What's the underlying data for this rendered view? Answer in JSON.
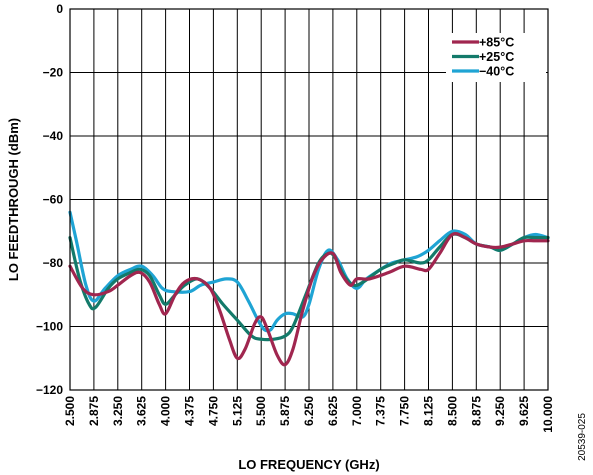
{
  "figure_id": "20539-025",
  "colors": {
    "series_85": "#a0264f",
    "series_25": "#137a6a",
    "series_m40": "#1fa4d4",
    "grid": "#000000"
  },
  "chart_data": {
    "type": "line",
    "title": "",
    "xlabel": "LO FREQUENCY (GHz)",
    "ylabel": "LO FEEDTHROUGH (dBm)",
    "xlim": [
      2.5,
      10.0
    ],
    "ylim": [
      -120,
      0
    ],
    "x_ticks": [
      "2.500",
      "2.875",
      "3.250",
      "3.625",
      "4.000",
      "4.375",
      "4.750",
      "5.125",
      "5.500",
      "5.875",
      "6.250",
      "6.625",
      "7.000",
      "7.375",
      "7.750",
      "8.125",
      "8.500",
      "8.875",
      "9.250",
      "9.625",
      "10.000"
    ],
    "y_ticks": [
      "0",
      "−20",
      "−40",
      "−60",
      "−80",
      "−100",
      "−120"
    ],
    "grid": true,
    "legend_position": "top-right",
    "series": [
      {
        "name": "+85°C",
        "color_key": "series_85",
        "points": [
          [
            2.5,
            -81
          ],
          [
            2.7,
            -88
          ],
          [
            2.875,
            -90
          ],
          [
            3.1,
            -89
          ],
          [
            3.25,
            -87
          ],
          [
            3.45,
            -84
          ],
          [
            3.6,
            -83
          ],
          [
            3.75,
            -86
          ],
          [
            3.9,
            -93
          ],
          [
            4.0,
            -96
          ],
          [
            4.15,
            -90
          ],
          [
            4.3,
            -86
          ],
          [
            4.5,
            -85
          ],
          [
            4.7,
            -88
          ],
          [
            4.85,
            -95
          ],
          [
            5.0,
            -104
          ],
          [
            5.125,
            -110
          ],
          [
            5.25,
            -107
          ],
          [
            5.4,
            -99
          ],
          [
            5.5,
            -97
          ],
          [
            5.6,
            -101
          ],
          [
            5.75,
            -109
          ],
          [
            5.875,
            -112
          ],
          [
            6.0,
            -107
          ],
          [
            6.15,
            -95
          ],
          [
            6.3,
            -85
          ],
          [
            6.45,
            -79
          ],
          [
            6.625,
            -77
          ],
          [
            6.75,
            -83
          ],
          [
            6.9,
            -87
          ],
          [
            7.0,
            -85
          ],
          [
            7.2,
            -85
          ],
          [
            7.5,
            -83
          ],
          [
            7.75,
            -81
          ],
          [
            8.0,
            -82
          ],
          [
            8.125,
            -82
          ],
          [
            8.3,
            -77
          ],
          [
            8.5,
            -71
          ],
          [
            8.7,
            -72
          ],
          [
            8.875,
            -74
          ],
          [
            9.1,
            -75
          ],
          [
            9.25,
            -75
          ],
          [
            9.45,
            -74
          ],
          [
            9.625,
            -73
          ],
          [
            9.8,
            -73
          ],
          [
            10.0,
            -73
          ]
        ]
      },
      {
        "name": "+25°C",
        "color_key": "series_25",
        "points": [
          [
            2.5,
            -72
          ],
          [
            2.65,
            -85
          ],
          [
            2.8,
            -93
          ],
          [
            2.9,
            -94
          ],
          [
            3.1,
            -88
          ],
          [
            3.25,
            -85
          ],
          [
            3.45,
            -83
          ],
          [
            3.6,
            -82
          ],
          [
            3.75,
            -84
          ],
          [
            3.9,
            -90
          ],
          [
            4.0,
            -93
          ],
          [
            4.15,
            -90
          ],
          [
            4.3,
            -87
          ],
          [
            4.5,
            -85
          ],
          [
            4.7,
            -88
          ],
          [
            4.9,
            -93
          ],
          [
            5.125,
            -98
          ],
          [
            5.35,
            -103
          ],
          [
            5.5,
            -104
          ],
          [
            5.7,
            -104
          ],
          [
            5.875,
            -103
          ],
          [
            6.0,
            -100
          ],
          [
            6.2,
            -90
          ],
          [
            6.4,
            -80
          ],
          [
            6.55,
            -77
          ],
          [
            6.65,
            -78
          ],
          [
            6.8,
            -84
          ],
          [
            6.95,
            -87
          ],
          [
            7.1,
            -86
          ],
          [
            7.375,
            -82
          ],
          [
            7.6,
            -80
          ],
          [
            7.75,
            -79
          ],
          [
            8.0,
            -80
          ],
          [
            8.125,
            -79
          ],
          [
            8.3,
            -75
          ],
          [
            8.5,
            -71
          ],
          [
            8.7,
            -72
          ],
          [
            8.875,
            -74
          ],
          [
            9.1,
            -75
          ],
          [
            9.25,
            -76
          ],
          [
            9.45,
            -74
          ],
          [
            9.625,
            -72
          ],
          [
            9.8,
            -72
          ],
          [
            10.0,
            -72
          ]
        ]
      },
      {
        "name": "−40°C",
        "color_key": "series_m40",
        "points": [
          [
            2.5,
            -64
          ],
          [
            2.6,
            -73
          ],
          [
            2.75,
            -87
          ],
          [
            2.875,
            -92
          ],
          [
            3.05,
            -88
          ],
          [
            3.25,
            -84
          ],
          [
            3.45,
            -82
          ],
          [
            3.625,
            -81
          ],
          [
            3.8,
            -84
          ],
          [
            3.95,
            -88
          ],
          [
            4.1,
            -89
          ],
          [
            4.375,
            -89
          ],
          [
            4.55,
            -87
          ],
          [
            4.75,
            -86
          ],
          [
            4.95,
            -85
          ],
          [
            5.125,
            -86
          ],
          [
            5.3,
            -92
          ],
          [
            5.45,
            -98
          ],
          [
            5.55,
            -101
          ],
          [
            5.65,
            -101
          ],
          [
            5.75,
            -98
          ],
          [
            5.875,
            -96
          ],
          [
            6.0,
            -96
          ],
          [
            6.15,
            -97
          ],
          [
            6.25,
            -93
          ],
          [
            6.4,
            -82
          ],
          [
            6.55,
            -76
          ],
          [
            6.7,
            -79
          ],
          [
            6.85,
            -85
          ],
          [
            7.0,
            -88
          ],
          [
            7.15,
            -85
          ],
          [
            7.375,
            -82
          ],
          [
            7.55,
            -80
          ],
          [
            7.75,
            -79
          ],
          [
            7.95,
            -78
          ],
          [
            8.125,
            -76
          ],
          [
            8.3,
            -73
          ],
          [
            8.5,
            -70
          ],
          [
            8.7,
            -71
          ],
          [
            8.875,
            -74
          ],
          [
            9.1,
            -75
          ],
          [
            9.25,
            -76
          ],
          [
            9.45,
            -74
          ],
          [
            9.625,
            -72
          ],
          [
            9.8,
            -71
          ],
          [
            10.0,
            -72
          ]
        ]
      }
    ]
  }
}
